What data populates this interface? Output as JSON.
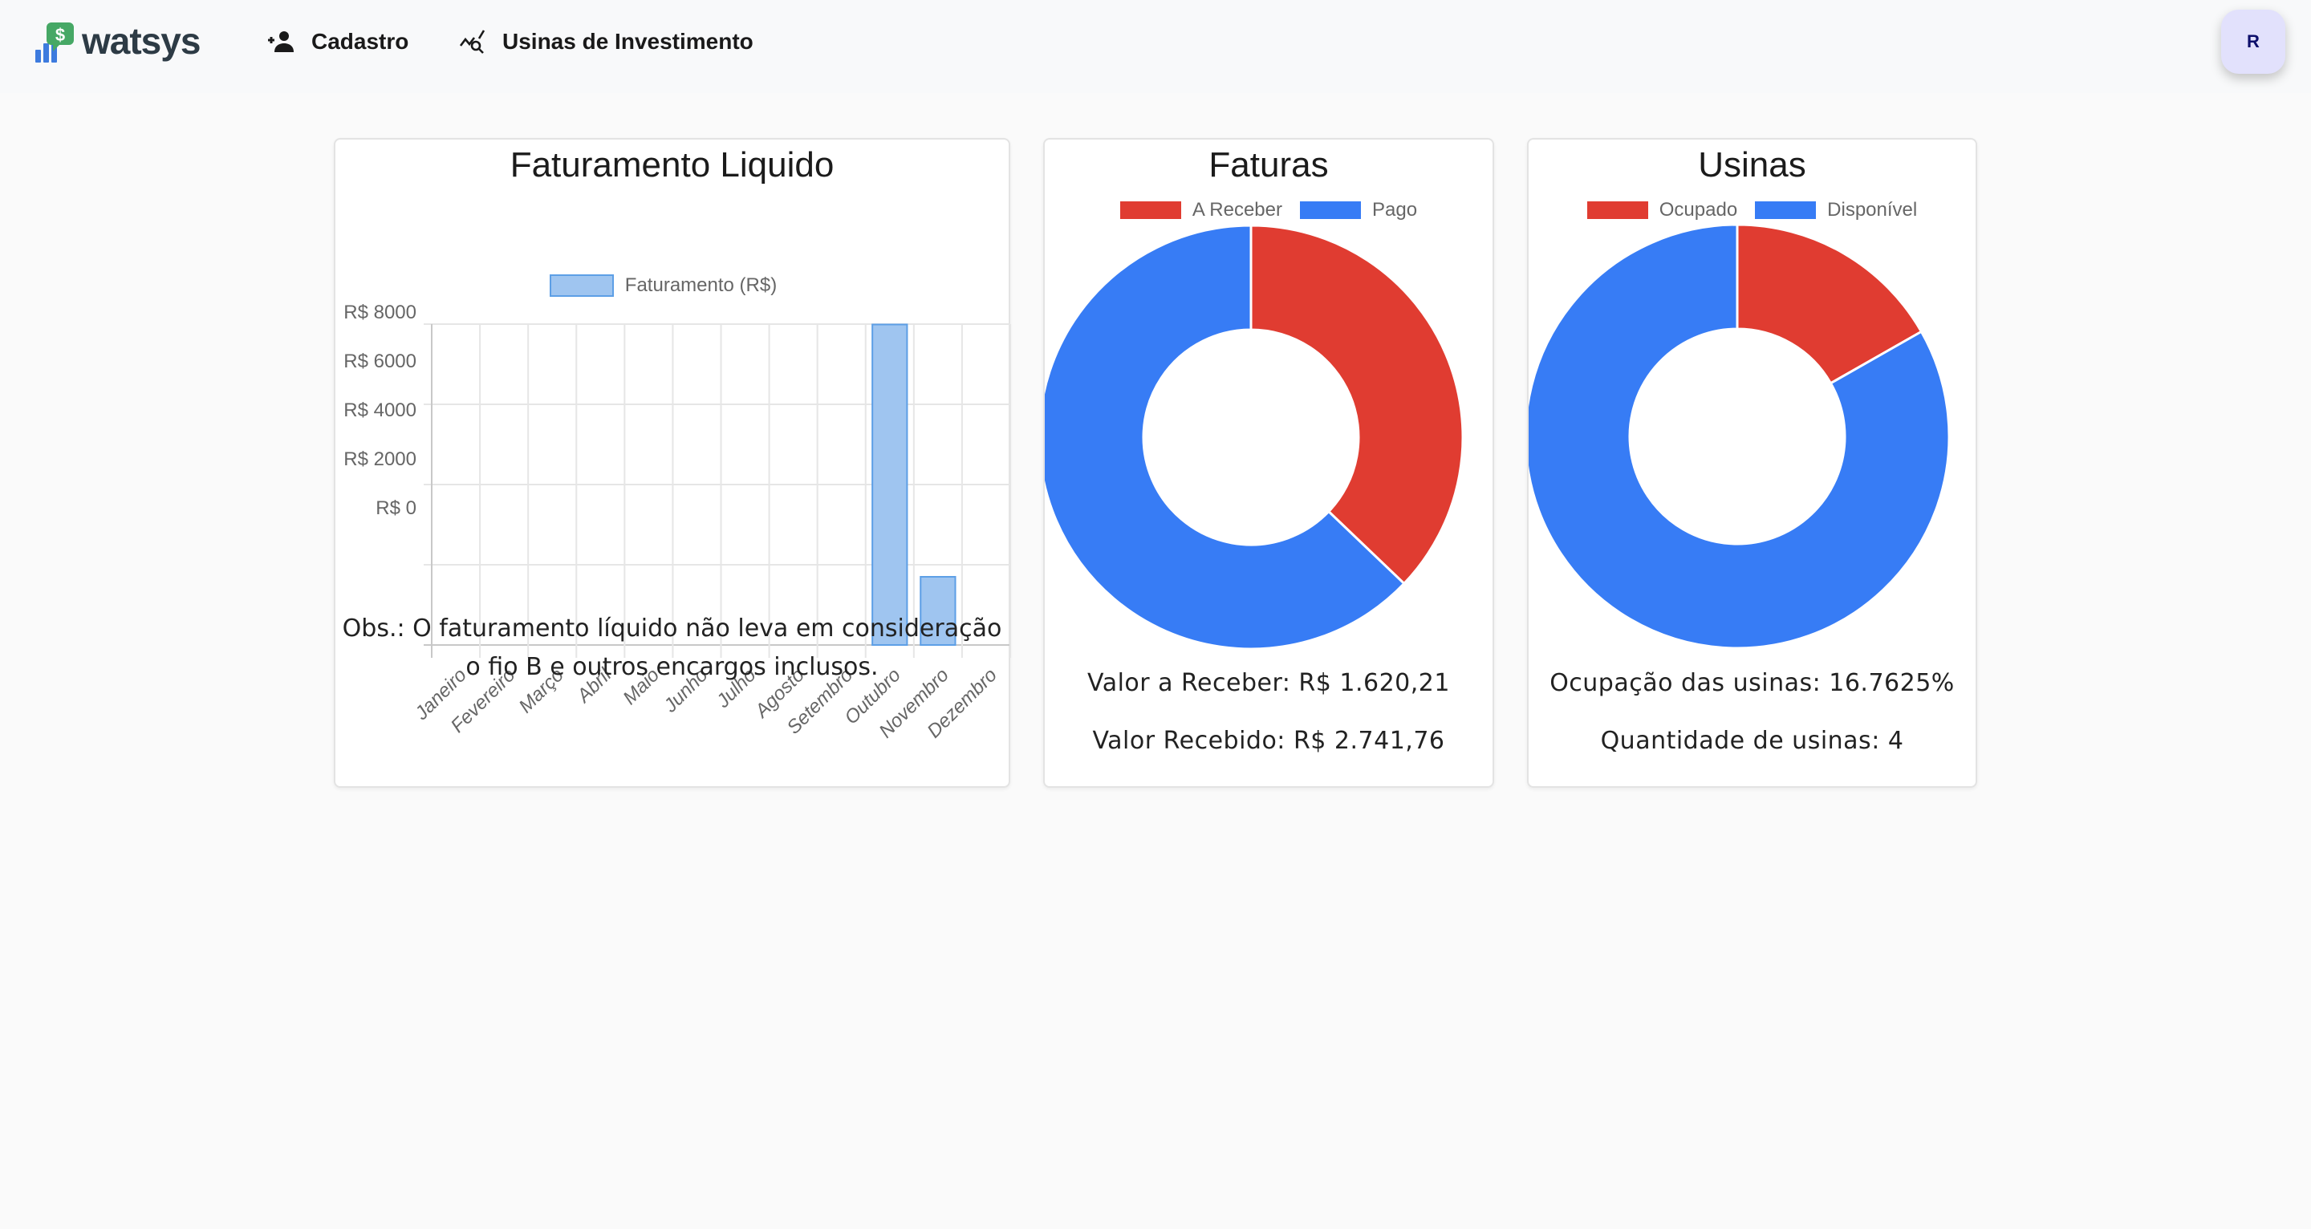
{
  "header": {
    "logo_text": "watsys",
    "nav": [
      {
        "label": "Cadastro",
        "icon": "person-add-icon"
      },
      {
        "label": "Usinas de Investimento",
        "icon": "query-stats-icon"
      }
    ],
    "avatar_initial": "R"
  },
  "colors": {
    "red": "#e03c31",
    "blue": "#377cf5",
    "bar_fill": "#9fc5f0",
    "bar_border": "#5d9fe6",
    "logo_green": "#46a865",
    "logo_blue": "#3d7bde",
    "avatar_bg": "#e2e1fc"
  },
  "cards": {
    "faturamento": {
      "title": "Faturamento Liquido",
      "legend": "Faturamento (R$)",
      "obs": "Obs.: O faturamento líquido não leva em consideração o fio B e outros encargos inclusos."
    },
    "faturas": {
      "title": "Faturas",
      "legend": [
        "A Receber",
        "Pago"
      ],
      "valor_a_receber": "Valor a Receber: R$ 1.620,21",
      "valor_recebido": "Valor Recebido: R$ 2.741,76"
    },
    "usinas": {
      "title": "Usinas",
      "legend": [
        "Ocupado",
        "Disponível"
      ],
      "ocupacao": "Ocupação das usinas: 16.7625%",
      "quantidade": "Quantidade de usinas: 4"
    }
  },
  "chart_data": [
    {
      "type": "bar",
      "title": "Faturamento Liquido",
      "categories": [
        "Janeiro",
        "Fevereiro",
        "Março",
        "Abril",
        "Maio",
        "Junho",
        "Julho",
        "Agosto",
        "Setembro",
        "Outubro",
        "Novembro",
        "Dezembro"
      ],
      "series": [
        {
          "name": "Faturamento (R$)",
          "values": [
            0,
            0,
            0,
            0,
            0,
            0,
            0,
            0,
            0,
            7990,
            1700,
            0
          ]
        }
      ],
      "yticks": [
        "R$ 0",
        "R$ 2000",
        "R$ 4000",
        "R$ 6000",
        "R$ 8000"
      ],
      "ylim": [
        0,
        8000
      ],
      "xlabel": "",
      "ylabel": "",
      "grid": true,
      "legend_position": "top"
    },
    {
      "type": "pie",
      "title": "Faturas",
      "categories": [
        "A Receber",
        "Pago"
      ],
      "values": [
        1620.21,
        2741.76
      ],
      "donut": true,
      "legend_position": "top"
    },
    {
      "type": "pie",
      "title": "Usinas",
      "categories": [
        "Ocupado",
        "Disponível"
      ],
      "values": [
        16.7625,
        83.2375
      ],
      "donut": true,
      "legend_position": "top"
    }
  ]
}
